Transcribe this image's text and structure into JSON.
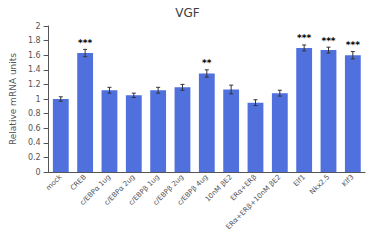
{
  "chart_data": {
    "type": "bar",
    "title": "VGF",
    "ylabel": "Relative mRNA units",
    "categories": [
      "mock",
      "CREB",
      "c/EBPα 1ug",
      "c/EBPα 2ug",
      "c/EBPβ 1ug",
      "c/EBPβ 2ug",
      "c/EBPβ 4ug",
      "10nM βE2",
      "ERα+ERβ",
      "ERα+ERβ+10nM βE2",
      "Elf1",
      "Nkx2.5",
      "Klf3"
    ],
    "values": [
      1.0,
      1.63,
      1.12,
      1.05,
      1.12,
      1.16,
      1.35,
      1.13,
      0.95,
      1.08,
      1.7,
      1.67,
      1.6
    ],
    "errors": [
      0.03,
      0.05,
      0.04,
      0.03,
      0.04,
      0.04,
      0.05,
      0.06,
      0.04,
      0.04,
      0.04,
      0.04,
      0.05
    ],
    "annotations": [
      {
        "category": "CREB",
        "text": "***"
      },
      {
        "category": "c/EBPβ 4ug",
        "text": "**"
      },
      {
        "category": "Elf1",
        "text": "***"
      },
      {
        "category": "Nkx2.5",
        "text": "***"
      },
      {
        "category": "Klf3",
        "text": "***"
      }
    ],
    "ylim": [
      0,
      2.0
    ],
    "yticks": [
      0,
      0.2,
      0.4,
      0.6,
      0.8,
      1,
      1.2,
      1.4,
      1.6,
      1.8,
      2
    ],
    "grid": false
  }
}
